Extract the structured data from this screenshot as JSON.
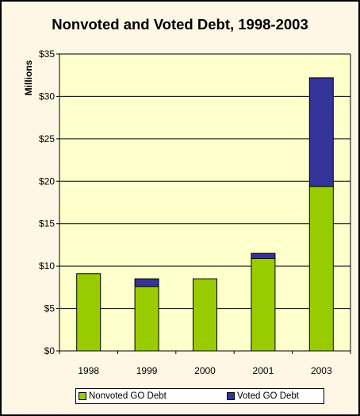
{
  "chart_data": {
    "type": "bar",
    "stacked": true,
    "title": "Nonvoted and Voted Debt, 1998-2003",
    "xlabel": "",
    "ylabel": "Millions",
    "categories": [
      "1998",
      "1999",
      "2000",
      "2001",
      "2003"
    ],
    "series": [
      {
        "name": "Nonvoted GO Debt",
        "color": "#99cc00",
        "values": [
          9.1,
          7.6,
          8.5,
          10.9,
          19.4
        ]
      },
      {
        "name": "Voted GO Debt",
        "color": "#333399",
        "values": [
          0,
          0.9,
          0,
          0.6,
          12.8
        ]
      }
    ],
    "ylim": [
      0,
      35
    ],
    "yticks": [
      0,
      5,
      10,
      15,
      20,
      25,
      30,
      35
    ],
    "ytick_labels": [
      "$0",
      "$5",
      "$10",
      "$15",
      "$20",
      "$25",
      "$30",
      "$35"
    ],
    "grid": true,
    "legend_position": "bottom",
    "plot_background": "#ffffcc",
    "page_background": "#fef7e5"
  }
}
